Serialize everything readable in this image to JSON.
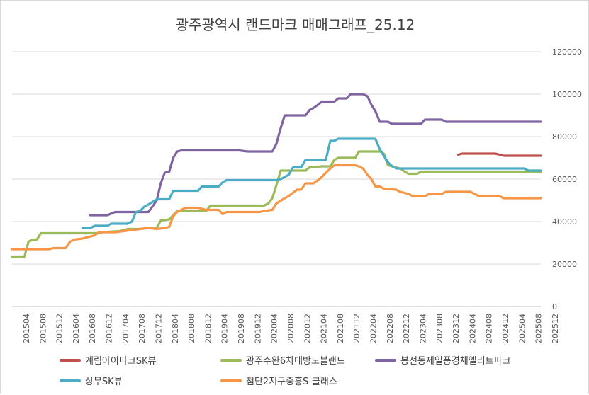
{
  "chart_data": {
    "type": "line",
    "title": "광주광역시 랜드마크 매매그래프_25.12",
    "xlabel": "",
    "ylabel": "",
    "ylim": [
      0,
      120000
    ],
    "yticks": [
      "0",
      "20000",
      "40000",
      "60000",
      "80000",
      "100000",
      "120000"
    ],
    "ytick_values": [
      0,
      20000,
      40000,
      60000,
      80000,
      100000,
      120000
    ],
    "grid": "horizontal",
    "legend_position": "bottom",
    "x_range": [
      2015.25,
      2025.917
    ],
    "xtick_labels": [
      "201504",
      "201508",
      "201512",
      "201604",
      "201608",
      "201612",
      "201704",
      "201708",
      "201712",
      "201804",
      "201808",
      "201812",
      "201904",
      "201908",
      "201912",
      "202004",
      "202008",
      "202012",
      "202104",
      "202108",
      "202112",
      "202204",
      "202208",
      "202212",
      "202304",
      "202308",
      "202312",
      "202404",
      "202408",
      "202412",
      "202504",
      "202508",
      "202512"
    ],
    "series": [
      {
        "name": "계림아이파크SK뷰",
        "color": "#c0504d",
        "points": [
          [
            2024.25,
            71500
          ],
          [
            2024.33,
            72000
          ],
          [
            2025.0,
            72000
          ],
          [
            2025.17,
            71000
          ],
          [
            2025.917,
            71000
          ]
        ]
      },
      {
        "name": "광주수완6차대방노블랜드",
        "color": "#9bbb59",
        "points": [
          [
            2015.25,
            23500
          ],
          [
            2015.5,
            23500
          ],
          [
            2015.58,
            30500
          ],
          [
            2015.67,
            31500
          ],
          [
            2015.75,
            31500
          ],
          [
            2015.83,
            34500
          ],
          [
            2016.0,
            34500
          ],
          [
            2017.0,
            34500
          ],
          [
            2017.08,
            35000
          ],
          [
            2017.42,
            35500
          ],
          [
            2017.58,
            36500
          ],
          [
            2017.83,
            36500
          ],
          [
            2018.0,
            37000
          ],
          [
            2018.17,
            37000
          ],
          [
            2018.25,
            40500
          ],
          [
            2018.42,
            41000
          ],
          [
            2018.5,
            43000
          ],
          [
            2018.58,
            45000
          ],
          [
            2019.0,
            45000
          ],
          [
            2019.17,
            45000
          ],
          [
            2019.25,
            47500
          ],
          [
            2020.0,
            47500
          ],
          [
            2020.33,
            47500
          ],
          [
            2020.42,
            48500
          ],
          [
            2020.5,
            51000
          ],
          [
            2020.58,
            57000
          ],
          [
            2020.67,
            64000
          ],
          [
            2020.83,
            64000
          ],
          [
            2021.0,
            64000
          ],
          [
            2021.17,
            64000
          ],
          [
            2021.25,
            65500
          ],
          [
            2021.5,
            66000
          ],
          [
            2021.67,
            66000
          ],
          [
            2021.75,
            69000
          ],
          [
            2021.83,
            70000
          ],
          [
            2022.0,
            70000
          ],
          [
            2022.17,
            70000
          ],
          [
            2022.25,
            73000
          ],
          [
            2022.5,
            73000
          ],
          [
            2022.67,
            73000
          ],
          [
            2022.75,
            72000
          ],
          [
            2022.83,
            66500
          ],
          [
            2022.92,
            66000
          ],
          [
            2023.0,
            65500
          ],
          [
            2023.08,
            65000
          ],
          [
            2023.17,
            63500
          ],
          [
            2023.25,
            62500
          ],
          [
            2023.42,
            62500
          ],
          [
            2023.5,
            63500
          ],
          [
            2023.75,
            63500
          ],
          [
            2024.0,
            63500
          ],
          [
            2025.0,
            63500
          ],
          [
            2025.917,
            63500
          ]
        ]
      },
      {
        "name": "봉선동제일풍경채엘리트파크",
        "color": "#8064a2",
        "points": [
          [
            2016.83,
            43000
          ],
          [
            2017.17,
            43000
          ],
          [
            2017.33,
            44500
          ],
          [
            2017.75,
            44500
          ],
          [
            2018.0,
            44500
          ],
          [
            2018.08,
            47000
          ],
          [
            2018.17,
            50000
          ],
          [
            2018.25,
            58000
          ],
          [
            2018.33,
            63000
          ],
          [
            2018.42,
            63500
          ],
          [
            2018.5,
            70000
          ],
          [
            2018.58,
            73000
          ],
          [
            2018.67,
            73500
          ],
          [
            2019.0,
            73500
          ],
          [
            2019.5,
            73500
          ],
          [
            2019.83,
            73500
          ],
          [
            2020.0,
            73000
          ],
          [
            2020.5,
            73000
          ],
          [
            2020.58,
            76500
          ],
          [
            2020.67,
            84000
          ],
          [
            2020.75,
            90000
          ],
          [
            2021.0,
            90000
          ],
          [
            2021.17,
            90000
          ],
          [
            2021.25,
            92500
          ],
          [
            2021.33,
            93500
          ],
          [
            2021.42,
            95000
          ],
          [
            2021.5,
            96500
          ],
          [
            2021.67,
            96500
          ],
          [
            2021.75,
            96500
          ],
          [
            2021.83,
            98000
          ],
          [
            2022.0,
            98000
          ],
          [
            2022.08,
            100000
          ],
          [
            2022.33,
            100000
          ],
          [
            2022.42,
            99000
          ],
          [
            2022.5,
            95000
          ],
          [
            2022.58,
            92000
          ],
          [
            2022.67,
            87000
          ],
          [
            2022.83,
            87000
          ],
          [
            2022.92,
            86000
          ],
          [
            2023.0,
            86000
          ],
          [
            2023.5,
            86000
          ],
          [
            2023.58,
            88000
          ],
          [
            2023.92,
            88000
          ],
          [
            2024.0,
            87000
          ],
          [
            2025.0,
            87000
          ],
          [
            2025.917,
            87000
          ]
        ]
      },
      {
        "name": "상무SK뷰",
        "color": "#4bacc6",
        "points": [
          [
            2016.67,
            37000
          ],
          [
            2016.83,
            37000
          ],
          [
            2016.92,
            38000
          ],
          [
            2017.17,
            38000
          ],
          [
            2017.25,
            39000
          ],
          [
            2017.58,
            39000
          ],
          [
            2017.67,
            40000
          ],
          [
            2017.75,
            44500
          ],
          [
            2017.83,
            45000
          ],
          [
            2017.92,
            47000
          ],
          [
            2018.0,
            48000
          ],
          [
            2018.17,
            50500
          ],
          [
            2018.42,
            50500
          ],
          [
            2018.5,
            54500
          ],
          [
            2018.75,
            54500
          ],
          [
            2018.83,
            54500
          ],
          [
            2019.0,
            54500
          ],
          [
            2019.08,
            56500
          ],
          [
            2019.42,
            56500
          ],
          [
            2019.5,
            58500
          ],
          [
            2019.58,
            59500
          ],
          [
            2020.0,
            59500
          ],
          [
            2020.58,
            59500
          ],
          [
            2020.67,
            60000
          ],
          [
            2020.83,
            62000
          ],
          [
            2020.92,
            65500
          ],
          [
            2021.08,
            65500
          ],
          [
            2021.17,
            69000
          ],
          [
            2021.42,
            69000
          ],
          [
            2021.58,
            69000
          ],
          [
            2021.67,
            78000
          ],
          [
            2021.75,
            78000
          ],
          [
            2021.83,
            79000
          ],
          [
            2022.0,
            79000
          ],
          [
            2022.5,
            79000
          ],
          [
            2022.58,
            79000
          ],
          [
            2022.67,
            74000
          ],
          [
            2022.75,
            71000
          ],
          [
            2022.83,
            68000
          ],
          [
            2022.92,
            66000
          ],
          [
            2023.0,
            65000
          ],
          [
            2023.5,
            65000
          ],
          [
            2024.0,
            65000
          ],
          [
            2024.5,
            65000
          ],
          [
            2025.0,
            65000
          ],
          [
            2025.58,
            65000
          ],
          [
            2025.67,
            64000
          ],
          [
            2025.917,
            64000
          ]
        ]
      },
      {
        "name": "첨단2지구중흥S-클래스",
        "color": "#f79646",
        "points": [
          [
            2015.25,
            27000
          ],
          [
            2015.5,
            27000
          ],
          [
            2016.0,
            27000
          ],
          [
            2016.08,
            27500
          ],
          [
            2016.33,
            27500
          ],
          [
            2016.42,
            30500
          ],
          [
            2016.5,
            31500
          ],
          [
            2016.67,
            32000
          ],
          [
            2016.75,
            32500
          ],
          [
            2016.92,
            33500
          ],
          [
            2017.0,
            35000
          ],
          [
            2017.33,
            35000
          ],
          [
            2017.5,
            35500
          ],
          [
            2017.83,
            36500
          ],
          [
            2018.0,
            37000
          ],
          [
            2018.17,
            36500
          ],
          [
            2018.33,
            37000
          ],
          [
            2018.42,
            37500
          ],
          [
            2018.5,
            42500
          ],
          [
            2018.58,
            44500
          ],
          [
            2018.75,
            46500
          ],
          [
            2019.0,
            46500
          ],
          [
            2019.17,
            45500
          ],
          [
            2019.42,
            45500
          ],
          [
            2019.5,
            43500
          ],
          [
            2019.58,
            44500
          ],
          [
            2020.0,
            44500
          ],
          [
            2020.25,
            44500
          ],
          [
            2020.33,
            45000
          ],
          [
            2020.5,
            45500
          ],
          [
            2020.58,
            48500
          ],
          [
            2020.75,
            51000
          ],
          [
            2020.83,
            52000
          ],
          [
            2021.0,
            55000
          ],
          [
            2021.08,
            55000
          ],
          [
            2021.17,
            58000
          ],
          [
            2021.33,
            58000
          ],
          [
            2021.42,
            59500
          ],
          [
            2021.5,
            61000
          ],
          [
            2021.58,
            63000
          ],
          [
            2021.67,
            65000
          ],
          [
            2021.75,
            66500
          ],
          [
            2022.0,
            66500
          ],
          [
            2022.17,
            66500
          ],
          [
            2022.25,
            66000
          ],
          [
            2022.33,
            65000
          ],
          [
            2022.42,
            62000
          ],
          [
            2022.5,
            60000
          ],
          [
            2022.58,
            56500
          ],
          [
            2022.67,
            56500
          ],
          [
            2022.75,
            55500
          ],
          [
            2023.0,
            55000
          ],
          [
            2023.08,
            54000
          ],
          [
            2023.25,
            53000
          ],
          [
            2023.33,
            52000
          ],
          [
            2023.58,
            52000
          ],
          [
            2023.67,
            53000
          ],
          [
            2023.92,
            53000
          ],
          [
            2024.0,
            54000
          ],
          [
            2024.5,
            54000
          ],
          [
            2024.58,
            53000
          ],
          [
            2024.67,
            52000
          ],
          [
            2025.0,
            52000
          ],
          [
            2025.08,
            52000
          ],
          [
            2025.17,
            51000
          ],
          [
            2025.5,
            51000
          ],
          [
            2025.917,
            51000
          ]
        ]
      }
    ]
  }
}
